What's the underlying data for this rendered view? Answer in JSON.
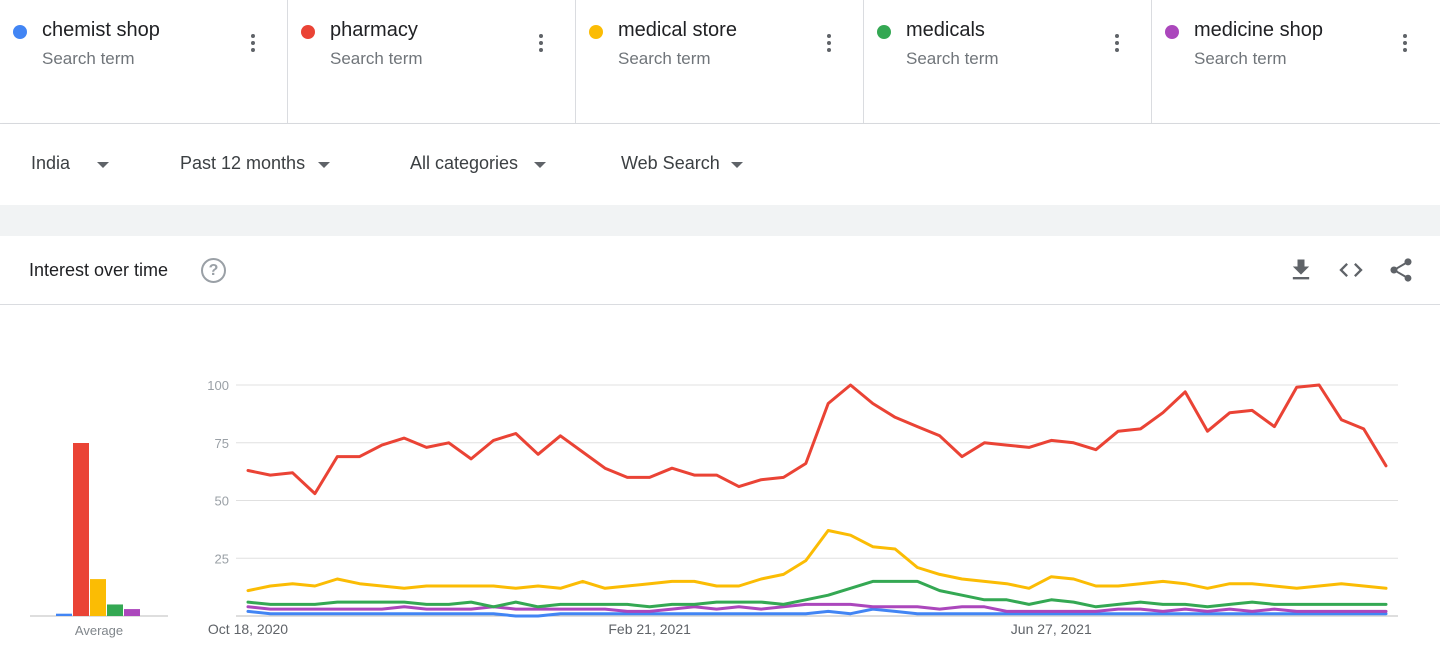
{
  "terms": [
    {
      "name": "chemist shop",
      "sub": "Search term",
      "color": "#4285f4"
    },
    {
      "name": "pharmacy",
      "sub": "Search term",
      "color": "#ea4335"
    },
    {
      "name": "medical store",
      "sub": "Search term",
      "color": "#fbbc04"
    },
    {
      "name": "medicals",
      "sub": "Search term",
      "color": "#34a853"
    },
    {
      "name": "medicine shop",
      "sub": "Search term",
      "color": "#ab47bc"
    }
  ],
  "filters": {
    "region": "India",
    "time": "Past 12 months",
    "category": "All categories",
    "search_type": "Web Search"
  },
  "panel": {
    "title": "Interest over time",
    "help_icon": "?",
    "icons": [
      "download-icon",
      "embed-code-icon",
      "share-icon"
    ]
  },
  "chart_data": {
    "type": "line",
    "title": "",
    "xlabel": "",
    "ylabel": "",
    "ylim": [
      0,
      100
    ],
    "yticks": [
      25,
      50,
      75,
      100
    ],
    "date_ticks": [
      {
        "index": 0,
        "label": "Oct 18, 2020"
      },
      {
        "index": 18,
        "label": "Feb 21, 2021"
      },
      {
        "index": 36,
        "label": "Jun 27, 2021"
      }
    ],
    "average_label": "Average",
    "averages": [
      1,
      75,
      16,
      5,
      3
    ],
    "series": [
      {
        "name": "chemist shop",
        "color": "#4285f4",
        "values": [
          2,
          1,
          1,
          1,
          1,
          1,
          1,
          1,
          1,
          1,
          1,
          1,
          0,
          0,
          1,
          1,
          1,
          1,
          1,
          1,
          1,
          1,
          1,
          1,
          1,
          1,
          2,
          1,
          3,
          2,
          1,
          1,
          1,
          1,
          1,
          1,
          1,
          1,
          1,
          1,
          1,
          1,
          1,
          1,
          1,
          1,
          1,
          1,
          1,
          1,
          1,
          1
        ]
      },
      {
        "name": "pharmacy",
        "color": "#ea4335",
        "values": [
          63,
          61,
          62,
          53,
          69,
          69,
          74,
          77,
          73,
          75,
          68,
          76,
          79,
          70,
          78,
          71,
          64,
          60,
          60,
          64,
          61,
          61,
          56,
          59,
          60,
          66,
          92,
          100,
          92,
          86,
          82,
          78,
          69,
          75,
          74,
          73,
          76,
          75,
          72,
          80,
          81,
          88,
          97,
          80,
          88,
          89,
          82,
          99,
          100,
          85,
          81,
          65
        ]
      },
      {
        "name": "medical store",
        "color": "#fbbc04",
        "values": [
          11,
          13,
          14,
          13,
          16,
          14,
          13,
          12,
          13,
          13,
          13,
          13,
          12,
          13,
          12,
          15,
          12,
          13,
          14,
          15,
          15,
          13,
          13,
          16,
          18,
          24,
          37,
          35,
          30,
          29,
          21,
          18,
          16,
          15,
          14,
          12,
          17,
          16,
          13,
          13,
          14,
          15,
          14,
          12,
          14,
          14,
          13,
          12,
          13,
          14,
          13,
          12
        ]
      },
      {
        "name": "medicals",
        "color": "#34a853",
        "values": [
          6,
          5,
          5,
          5,
          6,
          6,
          6,
          6,
          5,
          5,
          6,
          4,
          6,
          4,
          5,
          5,
          5,
          5,
          4,
          5,
          5,
          6,
          6,
          6,
          5,
          7,
          9,
          12,
          15,
          15,
          15,
          11,
          9,
          7,
          7,
          5,
          7,
          6,
          4,
          5,
          6,
          5,
          5,
          4,
          5,
          6,
          5,
          5,
          5,
          5,
          5,
          5
        ]
      },
      {
        "name": "medicine shop",
        "color": "#ab47bc",
        "values": [
          4,
          3,
          3,
          3,
          3,
          3,
          3,
          4,
          3,
          3,
          3,
          4,
          3,
          3,
          3,
          3,
          3,
          2,
          2,
          3,
          4,
          3,
          4,
          3,
          4,
          5,
          5,
          5,
          4,
          4,
          4,
          3,
          4,
          4,
          2,
          2,
          2,
          2,
          2,
          3,
          3,
          2,
          3,
          2,
          3,
          2,
          3,
          2,
          2,
          2,
          2,
          2
        ]
      }
    ]
  }
}
